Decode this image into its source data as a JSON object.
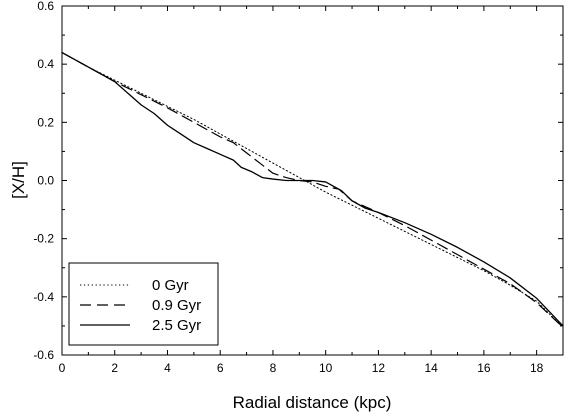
{
  "chart_data": {
    "type": "line",
    "title": "",
    "xlabel": "Radial distance (kpc)",
    "ylabel": "[X/H]",
    "xlim": [
      0,
      19
    ],
    "ylim": [
      -0.6,
      0.6
    ],
    "xticks": [
      0,
      2,
      4,
      6,
      8,
      10,
      12,
      14,
      16,
      18
    ],
    "yticks": [
      0.6,
      0.4,
      0.2,
      0.0,
      -0.2,
      -0.4,
      -0.6
    ],
    "xtick_labels": [
      "0",
      "2",
      "4",
      "6",
      "8",
      "10",
      "12",
      "14",
      "16",
      "18"
    ],
    "ytick_labels": [
      "0.6",
      "0.4",
      "0.2",
      "0.0",
      "-0.2",
      "-0.4",
      "-0.6"
    ],
    "grid": false,
    "legend_position": "bottom-left",
    "series": [
      {
        "name": "0 Gyr",
        "line_style": "dotted",
        "color": "#000000",
        "x": [
          0,
          1,
          2,
          3,
          4,
          5,
          6,
          7,
          8,
          9,
          10,
          11,
          12,
          13,
          14,
          15,
          16,
          17,
          18,
          19
        ],
        "y": [
          0.44,
          0.39,
          0.345,
          0.3,
          0.255,
          0.21,
          0.16,
          0.11,
          0.06,
          0.01,
          -0.04,
          -0.085,
          -0.13,
          -0.175,
          -0.22,
          -0.265,
          -0.31,
          -0.36,
          -0.415,
          -0.505
        ]
      },
      {
        "name": "0.9 Gyr",
        "line_style": "dashed",
        "color": "#000000",
        "x": [
          0,
          1,
          2,
          3,
          4,
          5,
          6,
          6.5,
          7,
          7.5,
          8,
          8.5,
          9,
          9.5,
          10,
          10.5,
          11,
          12,
          13,
          14,
          15,
          16,
          17,
          18,
          19
        ],
        "y": [
          0.44,
          0.39,
          0.34,
          0.295,
          0.25,
          0.2,
          0.15,
          0.13,
          0.095,
          0.06,
          0.025,
          0.01,
          0.0,
          -0.005,
          -0.02,
          -0.03,
          -0.07,
          -0.11,
          -0.155,
          -0.205,
          -0.255,
          -0.305,
          -0.355,
          -0.42,
          -0.505
        ]
      },
      {
        "name": "2.5 Gyr",
        "line_style": "solid",
        "color": "#000000",
        "x": [
          0,
          1,
          2,
          2.5,
          3,
          3.5,
          4,
          4.5,
          5,
          5.5,
          6,
          6.5,
          6.8,
          7.2,
          7.6,
          8,
          8.5,
          9,
          9.5,
          10,
          10.3,
          10.6,
          11,
          11.5,
          12,
          13,
          14,
          15,
          16,
          17,
          18,
          19
        ],
        "y": [
          0.44,
          0.39,
          0.34,
          0.3,
          0.26,
          0.23,
          0.19,
          0.16,
          0.13,
          0.11,
          0.09,
          0.07,
          0.045,
          0.03,
          0.01,
          0.005,
          0.0,
          0.0,
          0.0,
          -0.005,
          -0.02,
          -0.035,
          -0.07,
          -0.095,
          -0.11,
          -0.145,
          -0.185,
          -0.23,
          -0.28,
          -0.335,
          -0.405,
          -0.5
        ]
      }
    ]
  }
}
